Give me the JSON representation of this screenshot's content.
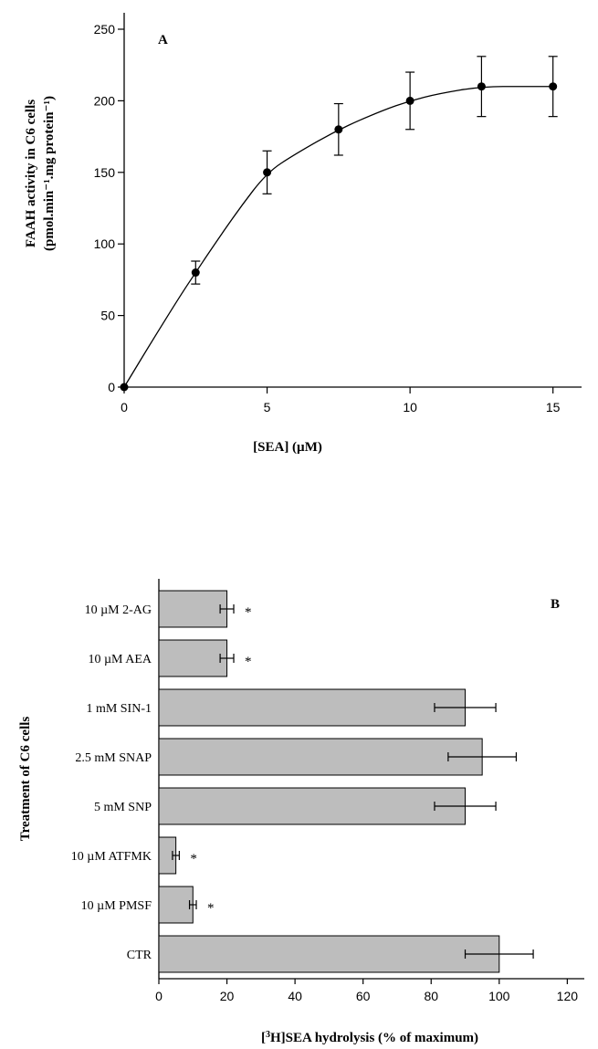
{
  "chart_data": [
    {
      "panel": "A",
      "type": "line",
      "xlabel": "[SEA] (µM)",
      "ylabel_line1": "FAAH activity in C6 cells",
      "ylabel_line2": "(pmol.min⁻¹.mg protein⁻¹)",
      "xlim": [
        0,
        16
      ],
      "ylim": [
        0,
        250
      ],
      "xticks": [
        0,
        5,
        10,
        15
      ],
      "yticks": [
        0,
        50,
        100,
        150,
        200,
        250
      ],
      "grid": false,
      "points": [
        {
          "x": 0,
          "y": 0,
          "err": 0
        },
        {
          "x": 2.5,
          "y": 80,
          "err": 8
        },
        {
          "x": 5,
          "y": 150,
          "err": 15
        },
        {
          "x": 7.5,
          "y": 180,
          "err": 18
        },
        {
          "x": 10,
          "y": 200,
          "err": 20
        },
        {
          "x": 12.5,
          "y": 210,
          "err": 21
        },
        {
          "x": 15,
          "y": 210,
          "err": 21
        }
      ],
      "curve": [
        {
          "x": 0,
          "y": 0
        },
        {
          "x": 1,
          "y": 33
        },
        {
          "x": 2,
          "y": 65
        },
        {
          "x": 2.5,
          "y": 80
        },
        {
          "x": 3,
          "y": 95
        },
        {
          "x": 4,
          "y": 124
        },
        {
          "x": 5,
          "y": 150
        },
        {
          "x": 6,
          "y": 163
        },
        {
          "x": 7.5,
          "y": 180
        },
        {
          "x": 9,
          "y": 193
        },
        {
          "x": 10,
          "y": 200
        },
        {
          "x": 11,
          "y": 205
        },
        {
          "x": 12.5,
          "y": 210
        },
        {
          "x": 14,
          "y": 210
        },
        {
          "x": 15,
          "y": 210
        }
      ]
    },
    {
      "panel": "B",
      "type": "bar",
      "orientation": "horizontal",
      "xlabel_pre": "[",
      "xlabel_sup": "3",
      "xlabel_post": "H]SEA hydrolysis (% of maximum)",
      "ylabel": "Treatment of C6 cells",
      "xlim": [
        0,
        125
      ],
      "xticks": [
        0,
        20,
        40,
        60,
        80,
        100,
        120
      ],
      "grid": false,
      "bar_color": "#bdbdbd",
      "categories": [
        "10 µM 2-AG",
        "10 µM AEA",
        "1 mM SIN-1",
        "2.5 mM SNAP",
        "5 mM SNP",
        "10 µM ATFMK",
        "10 µM PMSF",
        "CTR"
      ],
      "values": [
        20,
        20,
        90,
        95,
        90,
        5,
        10,
        100
      ],
      "errors": [
        2,
        2,
        9,
        10,
        9,
        1,
        1,
        10
      ],
      "significance": [
        "*",
        "*",
        "",
        "",
        "",
        "*",
        "*",
        ""
      ]
    }
  ]
}
